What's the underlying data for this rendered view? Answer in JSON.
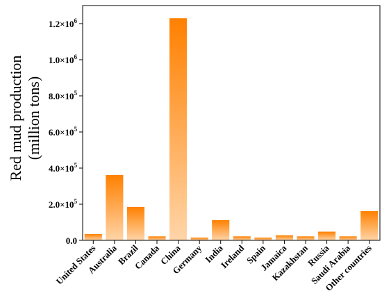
{
  "chart_data": {
    "type": "bar",
    "title": "",
    "xlabel": "",
    "ylabel_line1": "Red mud production",
    "ylabel_line2": "(million tons)",
    "ylim": [
      0,
      1300000
    ],
    "yticks": [
      {
        "value": 0,
        "label": "0.0"
      },
      {
        "value": 200000,
        "label": "2.0×10",
        "exp": "5"
      },
      {
        "value": 400000,
        "label": "4.0×10",
        "exp": "5"
      },
      {
        "value": 600000,
        "label": "6.0×10",
        "exp": "5"
      },
      {
        "value": 800000,
        "label": "8.0×10",
        "exp": "5"
      },
      {
        "value": 1000000,
        "label": "1.0×10",
        "exp": "6"
      },
      {
        "value": 1200000,
        "label": "1.2×10",
        "exp": "6"
      }
    ],
    "categories": [
      "United States",
      "Australia",
      "Brazil",
      "Canada",
      "China",
      "Germany",
      "India",
      "Ireland",
      "Spain",
      "Jamaica",
      "Kazakhstan",
      "Russia",
      "Saudi Arabia",
      "Other countries"
    ],
    "values": [
      35000,
      362000,
      185000,
      22000,
      1230000,
      15000,
      112000,
      22000,
      15000,
      28000,
      22000,
      48000,
      22000,
      162000
    ],
    "grid": false,
    "colors": {
      "bar_top": "#ff8000",
      "bar_bottom": "#ffd5a8",
      "axis": "#000000"
    }
  }
}
